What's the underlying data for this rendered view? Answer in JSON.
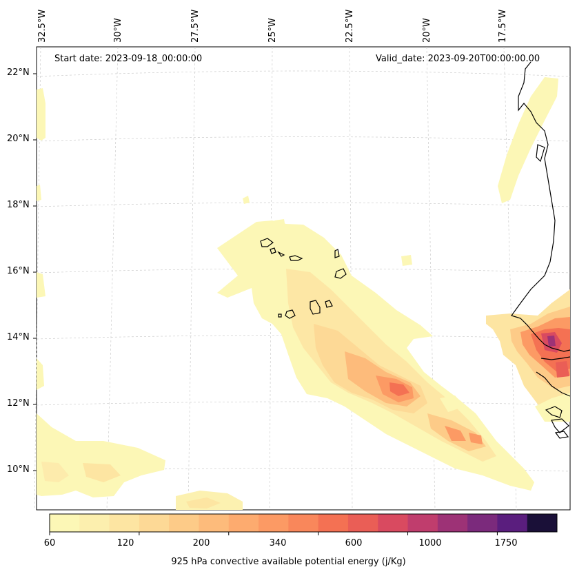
{
  "map": {
    "start_date": "Start date: 2023-09-18_00:00:00",
    "valid_date": "Valid_date: 2023-09-20T00:00:00.00",
    "lon_labels": [
      "32.5°W",
      "30°W",
      "27.5°W",
      "25°W",
      "22.5°W",
      "20°W",
      "17.5°W"
    ],
    "lat_labels": [
      "22°N",
      "20°N",
      "18°N",
      "16°N",
      "14°N",
      "12°N",
      "10°N"
    ],
    "variable": "925 hPa convective available potential energy (j/Kg)"
  },
  "colorbar": {
    "tick_labels": [
      "60",
      "120",
      "200",
      "340",
      "600",
      "1000",
      "1750"
    ],
    "colors": [
      "#fcf7b6",
      "#fcefae",
      "#fde5a2",
      "#fdd996",
      "#fdcb88",
      "#fdbb7b",
      "#fdab6f",
      "#fc9a64",
      "#f9875b",
      "#f47153",
      "#ea5e56",
      "#d94a60",
      "#c03d6d",
      "#9d3276",
      "#7b2a7c",
      "#5a1e7e",
      "#1a1038"
    ],
    "color_scheme": "magma-reversed"
  }
}
